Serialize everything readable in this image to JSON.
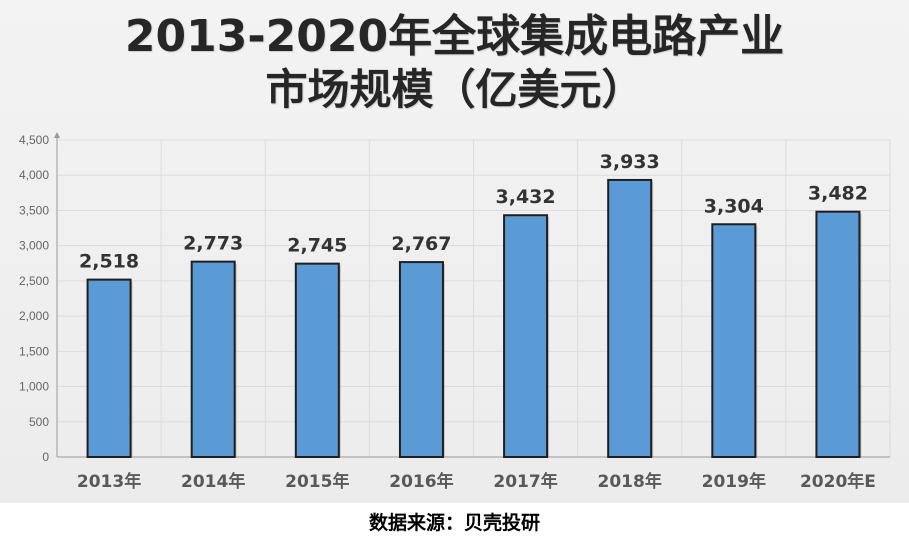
{
  "chart_data": {
    "type": "bar",
    "title_line1": "2013-2020年全球集成电路产业",
    "title_line2": "市场规模（亿美元）",
    "categories": [
      "2013年",
      "2014年",
      "2015年",
      "2016年",
      "2017年",
      "2018年",
      "2019年",
      "2020年E"
    ],
    "values": [
      2518,
      2773,
      2745,
      2767,
      3432,
      3933,
      3304,
      3482
    ],
    "data_labels": [
      "2,518",
      "2,773",
      "2,745",
      "2,767",
      "3,432",
      "3,933",
      "3,304",
      "3,482"
    ],
    "y_ticks": [
      0,
      500,
      1000,
      1500,
      2000,
      2500,
      3000,
      3500,
      4000,
      4500
    ],
    "y_tick_labels": [
      "0",
      "500",
      "1,000",
      "1,500",
      "2,000",
      "2,500",
      "3,000",
      "3,500",
      "4,000",
      "4,500"
    ],
    "ylim": [
      0,
      4500
    ],
    "xlabel": "",
    "ylabel": "",
    "grid": true,
    "legend": "none",
    "bar_color": "#5b9bd5",
    "bar_edge_color": "#1f1f1f"
  },
  "source": "数据来源：贝壳投研"
}
